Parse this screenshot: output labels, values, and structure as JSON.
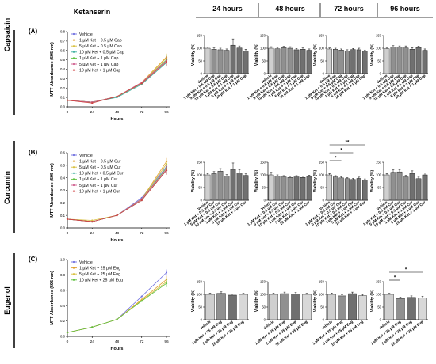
{
  "figure": {
    "left_title": "Ketanserin",
    "time_headers": [
      "24 hours",
      "48 hours",
      "72 hours",
      "96 hours"
    ]
  },
  "chart_data": [
    {
      "type": "line",
      "panel": "(A)",
      "row_label": "Capsaicin",
      "xlabel": "Hours",
      "ylabel": "MTT Absorbance (595 nm)",
      "x": [
        0,
        24,
        48,
        72,
        96
      ],
      "xticks": [
        0,
        24,
        48,
        72,
        96
      ],
      "ylim": [
        0,
        0.8
      ],
      "yticks": [
        0.0,
        0.1,
        0.2,
        0.3,
        0.4,
        0.5,
        0.6,
        0.7,
        0.8
      ],
      "legend": "top-left",
      "series": [
        {
          "name": "Vehicle",
          "color": "#6f6fe0",
          "values": [
            0.07,
            0.05,
            0.11,
            0.25,
            0.5
          ]
        },
        {
          "name": "1 µM Ket + 0.5 µM Cap",
          "color": "#e0a030",
          "values": [
            0.07,
            0.05,
            0.11,
            0.26,
            0.53
          ]
        },
        {
          "name": "5 µM Ket + 0.5 µM Cap",
          "color": "#d8c040",
          "values": [
            0.07,
            0.05,
            0.11,
            0.25,
            0.52
          ]
        },
        {
          "name": "10 µM Ket + 0.5 µM Cap",
          "color": "#40b0a0",
          "values": [
            0.07,
            0.05,
            0.1,
            0.24,
            0.47
          ]
        },
        {
          "name": "1 µM Ket + 1 µM Cap",
          "color": "#60c040",
          "values": [
            0.07,
            0.05,
            0.11,
            0.25,
            0.5
          ]
        },
        {
          "name": "5 µM Ket + 1 µM Cap",
          "color": "#d06090",
          "values": [
            0.07,
            0.05,
            0.11,
            0.26,
            0.49
          ]
        },
        {
          "name": "10 µM Ket + 1 µM Cap",
          "color": "#d04040",
          "values": [
            0.07,
            0.04,
            0.11,
            0.25,
            0.48
          ]
        }
      ]
    },
    {
      "type": "line",
      "panel": "(B)",
      "row_label": "Curcumin",
      "xlabel": "Hours",
      "ylabel": "MTT Absorbance (595 nm)",
      "x": [
        0,
        24,
        48,
        72,
        96
      ],
      "xticks": [
        0,
        24,
        48,
        72,
        96
      ],
      "ylim": [
        0,
        0.6
      ],
      "yticks": [
        0.0,
        0.1,
        0.2,
        0.3,
        0.4,
        0.5,
        0.6
      ],
      "legend": "top-left",
      "series": [
        {
          "name": "Vehicle",
          "color": "#6f6fe0",
          "values": [
            0.07,
            0.05,
            0.1,
            0.24,
            0.49
          ]
        },
        {
          "name": "1 µM Ket + 0.5 µM Cur",
          "color": "#e0a030",
          "values": [
            0.07,
            0.05,
            0.1,
            0.23,
            0.53
          ]
        },
        {
          "name": "5 µM Ket + 0.5 µM Cur",
          "color": "#d8c040",
          "values": [
            0.07,
            0.06,
            0.1,
            0.23,
            0.51
          ]
        },
        {
          "name": "10 µM Ket + 0.5 µM Cur",
          "color": "#40b0a0",
          "values": [
            0.07,
            0.05,
            0.1,
            0.22,
            0.46
          ]
        },
        {
          "name": "1 µM Ket + 1 µM Cur",
          "color": "#60c040",
          "values": [
            0.07,
            0.05,
            0.1,
            0.23,
            0.48
          ]
        },
        {
          "name": "5 µM Ket + 1 µM Cur",
          "color": "#d06090",
          "values": [
            0.07,
            0.05,
            0.1,
            0.23,
            0.47
          ]
        },
        {
          "name": "10 µM Ket + 1 µM Cur",
          "color": "#d04040",
          "values": [
            0.07,
            0.05,
            0.1,
            0.22,
            0.46
          ]
        }
      ]
    },
    {
      "type": "line",
      "panel": "(C)",
      "row_label": "Eugenol",
      "xlabel": "Hours",
      "ylabel": "MTT Absorbance (595 nm)",
      "x": [
        0,
        24,
        48,
        72,
        96
      ],
      "xticks": [
        0,
        24,
        48,
        72,
        96
      ],
      "ylim": [
        0,
        1.0
      ],
      "yticks": [
        0.0,
        0.2,
        0.4,
        0.6,
        0.8,
        1.0
      ],
      "legend": "top-left",
      "series": [
        {
          "name": "Vehicle",
          "color": "#6f6fe0",
          "values": [
            0.05,
            0.12,
            0.22,
            0.52,
            0.83
          ]
        },
        {
          "name": "1 µM Ket + 25 µM Eug",
          "color": "#e0a030",
          "values": [
            0.05,
            0.12,
            0.22,
            0.48,
            0.74
          ]
        },
        {
          "name": "5 µM Ket + 25 µM Eug",
          "color": "#d8c040",
          "values": [
            0.05,
            0.12,
            0.22,
            0.47,
            0.71
          ]
        },
        {
          "name": "10 µM Ket + 25 µM Eug",
          "color": "#60c040",
          "values": [
            0.05,
            0.12,
            0.22,
            0.46,
            0.69
          ]
        }
      ]
    },
    {
      "type": "bar",
      "row": 0,
      "col": 0,
      "ylabel": "Viability (%)",
      "ylim": [
        0,
        150
      ],
      "yticks": [
        0,
        50,
        100,
        150
      ],
      "categories": [
        "Vehicle",
        "1 µM Ket + 0.5 µM Cap",
        "5 µM Ket + 0.5 µM Cap",
        "10 µM Ket + 0.5 µM Cap",
        "1 µM Ket + 1 µM Cap",
        "5 µM Ket + 1 µM Cap",
        "10 µM Ket + 1 µM Cap"
      ],
      "values": [
        100,
        96,
        94,
        92,
        112,
        101,
        90
      ],
      "errors": [
        5,
        5,
        6,
        5,
        25,
        8,
        6
      ],
      "colors": [
        "#cfcfcf",
        "#909090",
        "#909090",
        "#909090",
        "#707070",
        "#707070",
        "#707070"
      ]
    },
    {
      "type": "bar",
      "row": 0,
      "col": 1,
      "ylabel": "Viability (%)",
      "ylim": [
        0,
        150
      ],
      "yticks": [
        0,
        50,
        100,
        150
      ],
      "categories": [
        "Vehicle",
        "1 µM Ket + 0.5 µM Cap",
        "5 µM Ket + 0.5 µM Cap",
        "10 µM Ket + 0.5 µM Cap",
        "1 µM Ket + 1 µM Cap",
        "5 µM Ket + 1 µM Cap",
        "10 µM Ket + 1 µM Cap"
      ],
      "values": [
        100,
        98,
        102,
        100,
        94,
        96,
        92
      ],
      "errors": [
        6,
        5,
        5,
        6,
        5,
        5,
        5
      ],
      "colors": [
        "#cfcfcf",
        "#909090",
        "#909090",
        "#909090",
        "#707070",
        "#707070",
        "#707070"
      ]
    },
    {
      "type": "bar",
      "row": 0,
      "col": 2,
      "ylabel": "Viability (%)",
      "ylim": [
        0,
        150
      ],
      "yticks": [
        0,
        50,
        100,
        150
      ],
      "categories": [
        "Vehicle",
        "1 µM Ket + 0.5 µM Cap",
        "5 µM Ket + 0.5 µM Cap",
        "10 µM Ket + 0.5 µM Cap",
        "1 µM Ket + 1 µM Cap",
        "5 µM Ket + 1 µM Cap",
        "10 µM Ket + 1 µM Cap"
      ],
      "values": [
        97,
        96,
        93,
        90,
        95,
        94,
        88
      ],
      "errors": [
        4,
        4,
        4,
        4,
        4,
        6,
        5
      ],
      "colors": [
        "#cfcfcf",
        "#909090",
        "#909090",
        "#909090",
        "#707070",
        "#707070",
        "#707070"
      ]
    },
    {
      "type": "bar",
      "row": 0,
      "col": 3,
      "ylabel": "Viability (%)",
      "ylim": [
        0,
        150
      ],
      "yticks": [
        0,
        50,
        100,
        150
      ],
      "categories": [
        "Vehicle",
        "1 µM Ket + 0.5 µM Cap",
        "5 µM Ket + 0.5 µM Cap",
        "10 µM Ket + 0.5 µM Cap",
        "1 µM Ket + 1 µM Cap",
        "5 µM Ket + 1 µM Cap",
        "10 µM Ket + 1 µM Cap"
      ],
      "values": [
        98,
        104,
        104,
        101,
        96,
        103,
        92
      ],
      "errors": [
        5,
        6,
        5,
        8,
        6,
        5,
        5
      ],
      "colors": [
        "#cfcfcf",
        "#909090",
        "#909090",
        "#909090",
        "#707070",
        "#707070",
        "#707070"
      ]
    },
    {
      "type": "bar",
      "row": 1,
      "col": 0,
      "ylabel": "Viability (%)",
      "ylim": [
        0,
        150
      ],
      "yticks": [
        0,
        50,
        100,
        150
      ],
      "categories": [
        "Vehicle",
        "1 µM Ket + 0.5 µM Cur",
        "5 µM Ket + 0.5 µM Cur",
        "10 µM Ket + 0.5 µM Cur",
        "1 µM Ket + 1 µM Cur",
        "5 µM Ket + 1 µM Cur",
        "10 µM Ket + 1 µM Cur"
      ],
      "values": [
        100,
        105,
        115,
        95,
        122,
        108,
        98
      ],
      "errors": [
        5,
        8,
        10,
        6,
        25,
        12,
        8
      ],
      "colors": [
        "#cfcfcf",
        "#909090",
        "#909090",
        "#909090",
        "#707070",
        "#707070",
        "#707070"
      ]
    },
    {
      "type": "bar",
      "row": 1,
      "col": 1,
      "ylabel": "Viability (%)",
      "ylim": [
        0,
        150
      ],
      "yticks": [
        0,
        50,
        100,
        150
      ],
      "categories": [
        "Vehicle",
        "1 µM Ket + 0.5 µM Cur",
        "5 µM Ket + 0.5 µM Cur",
        "10 µM Ket + 0.5 µM Cur",
        "1 µM Ket + 1 µM Cur",
        "5 µM Ket + 1 µM Cur",
        "10 µM Ket + 1 µM Cur"
      ],
      "values": [
        100,
        95,
        92,
        90,
        92,
        90,
        94
      ],
      "errors": [
        10,
        5,
        5,
        4,
        5,
        5,
        5
      ],
      "colors": [
        "#cfcfcf",
        "#909090",
        "#909090",
        "#909090",
        "#707070",
        "#707070",
        "#707070"
      ]
    },
    {
      "type": "bar",
      "row": 1,
      "col": 2,
      "ylabel": "Viability (%)",
      "ylim": [
        0,
        150
      ],
      "yticks": [
        0,
        50,
        100,
        150
      ],
      "categories": [
        "Vehicle",
        "1 µM Ket + 0.5 µM Cur",
        "5 µM Ket + 0.5 µM Cur",
        "10 µM Ket + 0.5 µM Cur",
        "1 µM Ket + 1 µM Cur",
        "5 µM Ket + 1 µM Cur",
        "10 µM Ket + 1 µM Cur"
      ],
      "values": [
        100,
        92,
        88,
        85,
        82,
        86,
        80
      ],
      "errors": [
        5,
        5,
        4,
        4,
        4,
        5,
        4
      ],
      "colors": [
        "#cfcfcf",
        "#909090",
        "#909090",
        "#909090",
        "#707070",
        "#707070",
        "#707070"
      ],
      "annotations": [
        "*",
        "*",
        "**"
      ]
    },
    {
      "type": "bar",
      "row": 1,
      "col": 3,
      "ylabel": "Viability (%)",
      "ylim": [
        0,
        150
      ],
      "yticks": [
        0,
        50,
        100,
        150
      ],
      "categories": [
        "Vehicle",
        "1 µM Ket + 0.5 µM Cur",
        "5 µM Ket + 0.5 µM Cur",
        "10 µM Ket + 0.5 µM Cur",
        "1 µM Ket + 1 µM Cur",
        "5 µM Ket + 1 µM Cur",
        "10 µM Ket + 1 µM Cur"
      ],
      "values": [
        100,
        110,
        112,
        92,
        106,
        85,
        100
      ],
      "errors": [
        5,
        10,
        8,
        6,
        10,
        6,
        8
      ],
      "colors": [
        "#cfcfcf",
        "#909090",
        "#909090",
        "#909090",
        "#707070",
        "#707070",
        "#707070"
      ]
    },
    {
      "type": "bar",
      "row": 2,
      "col": 0,
      "ylabel": "Viability (%)",
      "ylim": [
        0,
        150
      ],
      "yticks": [
        0,
        50,
        100,
        150
      ],
      "categories": [
        "Vehicle",
        "1 µM Ket + 25 µM Eug",
        "5 µM Ket + 25 µM Eug",
        "10 µM Ket + 25 µM Eug"
      ],
      "values": [
        100,
        104,
        97,
        100
      ],
      "errors": [
        5,
        6,
        5,
        4
      ],
      "colors": [
        "#cfcfcf",
        "#909090",
        "#707070",
        "#d8d8d8"
      ]
    },
    {
      "type": "bar",
      "row": 2,
      "col": 1,
      "ylabel": "Viability (%)",
      "ylim": [
        0,
        150
      ],
      "yticks": [
        0,
        50,
        100,
        150
      ],
      "categories": [
        "Vehicle",
        "1 µM Ket + 25 µM Eug",
        "5 µM Ket + 25 µM Eug",
        "10 µM Ket + 25 µM Eug"
      ],
      "values": [
        100,
        103,
        102,
        100
      ],
      "errors": [
        5,
        6,
        5,
        4
      ],
      "colors": [
        "#cfcfcf",
        "#909090",
        "#707070",
        "#d8d8d8"
      ]
    },
    {
      "type": "bar",
      "row": 2,
      "col": 2,
      "ylabel": "Viability (%)",
      "ylim": [
        0,
        150
      ],
      "yticks": [
        0,
        50,
        100,
        150
      ],
      "categories": [
        "Vehicle",
        "1 µM Ket + 25 µM Eug",
        "5 µM Ket + 25 µM Eug",
        "10 µM Ket + 25 µM Eug"
      ],
      "values": [
        100,
        94,
        103,
        95
      ],
      "errors": [
        5,
        5,
        6,
        5
      ],
      "colors": [
        "#cfcfcf",
        "#909090",
        "#707070",
        "#d8d8d8"
      ]
    },
    {
      "type": "bar",
      "row": 2,
      "col": 3,
      "ylabel": "Viability (%)",
      "ylim": [
        0,
        150
      ],
      "yticks": [
        0,
        50,
        100,
        150
      ],
      "categories": [
        "Vehicle",
        "1 µM Ket + 25 µM Eug",
        "5 µM Ket + 25 µM Eug",
        "10 µM Ket + 25 µM Eug"
      ],
      "values": [
        100,
        84,
        88,
        85
      ],
      "errors": [
        4,
        5,
        6,
        8
      ],
      "colors": [
        "#cfcfcf",
        "#909090",
        "#707070",
        "#d8d8d8"
      ],
      "annotations": [
        "*",
        "*"
      ]
    }
  ]
}
